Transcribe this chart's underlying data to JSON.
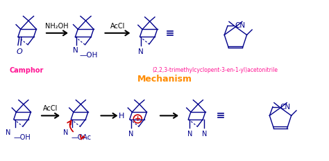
{
  "background_color": "#ffffff",
  "mechanism_label": "Mechanism",
  "mechanism_color": "#FF8C00",
  "camphor_label": "Camphor",
  "camphor_color": "#FF1493",
  "product_label": "(2,2,3-trimethylcyclopent-3-en-1-yl)acetonitrile",
  "product_color": "#FF1493",
  "reagent1": "NH₂OH",
  "reagent2": "AcCl",
  "reagent3": "AcCl",
  "arrow_color": "#000000",
  "structure_color": "#00008B",
  "red_color": "#CC0000",
  "figsize": [
    4.74,
    2.33
  ],
  "dpi": 100
}
